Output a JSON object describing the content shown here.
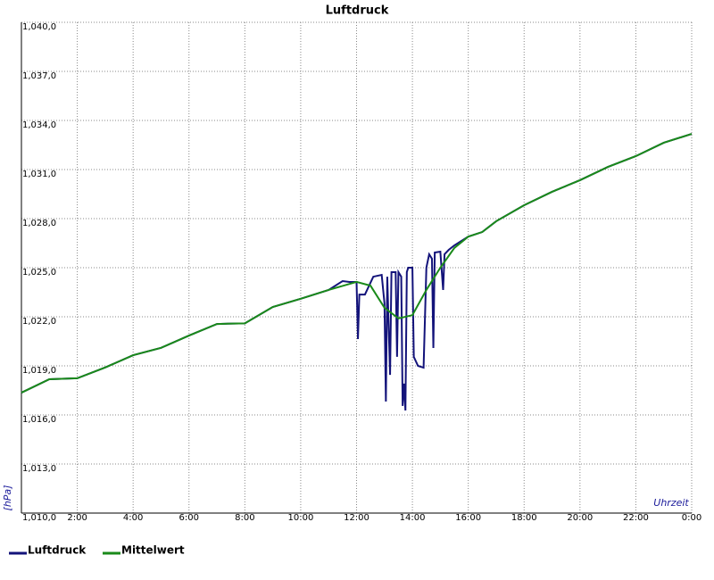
{
  "chart_data": {
    "type": "line",
    "title": "Luftdruck",
    "x_label": "Uhrzeit",
    "y_label": "[hPa]",
    "xlim": [
      0,
      24
    ],
    "ylim": [
      1010,
      1040
    ],
    "xticks": [
      {
        "value": 2,
        "label": "2:00"
      },
      {
        "value": 4,
        "label": "4:00"
      },
      {
        "value": 6,
        "label": "6:00"
      },
      {
        "value": 8,
        "label": "8:00"
      },
      {
        "value": 10,
        "label": "10:00"
      },
      {
        "value": 12,
        "label": "12:00"
      },
      {
        "value": 14,
        "label": "14:00"
      },
      {
        "value": 16,
        "label": "16:00"
      },
      {
        "value": 18,
        "label": "18:00"
      },
      {
        "value": 20,
        "label": "20:00"
      },
      {
        "value": 22,
        "label": "22:00"
      },
      {
        "value": 24,
        "label": "0:00"
      }
    ],
    "yticks": [
      {
        "value": 1010,
        "label": "1,010,0"
      },
      {
        "value": 1013,
        "label": "1,013,0"
      },
      {
        "value": 1016,
        "label": "1,016,0"
      },
      {
        "value": 1019,
        "label": "1,019,0"
      },
      {
        "value": 1022,
        "label": "1,022,0"
      },
      {
        "value": 1025,
        "label": "1,025,0"
      },
      {
        "value": 1028,
        "label": "1,028,0"
      },
      {
        "value": 1031,
        "label": "1,031,0"
      },
      {
        "value": 1034,
        "label": "1,034,0"
      },
      {
        "value": 1037,
        "label": "1,037,0"
      },
      {
        "value": 1040,
        "label": "1,040,0"
      }
    ],
    "grid": true,
    "series": [
      {
        "name": "Luftdruck",
        "color": "#13137a",
        "x": [
          0,
          1,
          2,
          3,
          4,
          5,
          6,
          7,
          8,
          9,
          10,
          11,
          11.5,
          11.75,
          12,
          12.05,
          12.1,
          12.3,
          12.6,
          12.9,
          13,
          13.05,
          13.1,
          13.2,
          13.25,
          13.4,
          13.45,
          13.5,
          13.6,
          13.65,
          13.7,
          13.75,
          13.8,
          13.85,
          14,
          14.05,
          14.2,
          14.4,
          14.5,
          14.6,
          14.7,
          14.75,
          14.8,
          15,
          15.1,
          15.15,
          15.3,
          15.5,
          16,
          16.5,
          17,
          18,
          19,
          20,
          21,
          22,
          23,
          24
        ],
        "values": [
          1017.36,
          1018.18,
          1018.24,
          1018.9,
          1019.65,
          1020.1,
          1020.85,
          1021.56,
          1021.6,
          1022.6,
          1023.1,
          1023.64,
          1024.18,
          1024.13,
          1024.13,
          1020.64,
          1023.36,
          1023.36,
          1024.45,
          1024.56,
          1022.82,
          1016.82,
          1024.45,
          1018.45,
          1024.73,
          1024.73,
          1019.55,
          1024.73,
          1024.45,
          1016.55,
          1017.91,
          1016.27,
          1024.73,
          1025.0,
          1025.0,
          1019.55,
          1019.0,
          1018.89,
          1025.0,
          1025.82,
          1025.55,
          1020.09,
          1025.93,
          1025.98,
          1023.64,
          1025.82,
          1026.09,
          1026.36,
          1026.9,
          1027.18,
          1027.84,
          1028.82,
          1029.64,
          1030.35,
          1031.16,
          1031.82,
          1032.64,
          1033.18
        ]
      },
      {
        "name": "Mittelwert",
        "color": "#1a8a1a",
        "x": [
          0,
          1,
          2,
          3,
          4,
          5,
          6,
          7,
          8,
          9,
          10,
          11,
          12,
          12.5,
          13,
          13.5,
          14,
          14.5,
          15,
          15.5,
          16,
          16.5,
          17,
          18,
          19,
          20,
          21,
          22,
          23,
          24
        ],
        "values": [
          1017.36,
          1018.18,
          1018.24,
          1018.9,
          1019.65,
          1020.1,
          1020.85,
          1021.56,
          1021.6,
          1022.6,
          1023.1,
          1023.64,
          1024.13,
          1023.9,
          1022.55,
          1021.9,
          1022.1,
          1023.64,
          1025.0,
          1026.2,
          1026.9,
          1027.18,
          1027.84,
          1028.82,
          1029.64,
          1030.35,
          1031.16,
          1031.82,
          1032.64,
          1033.18
        ]
      }
    ]
  }
}
